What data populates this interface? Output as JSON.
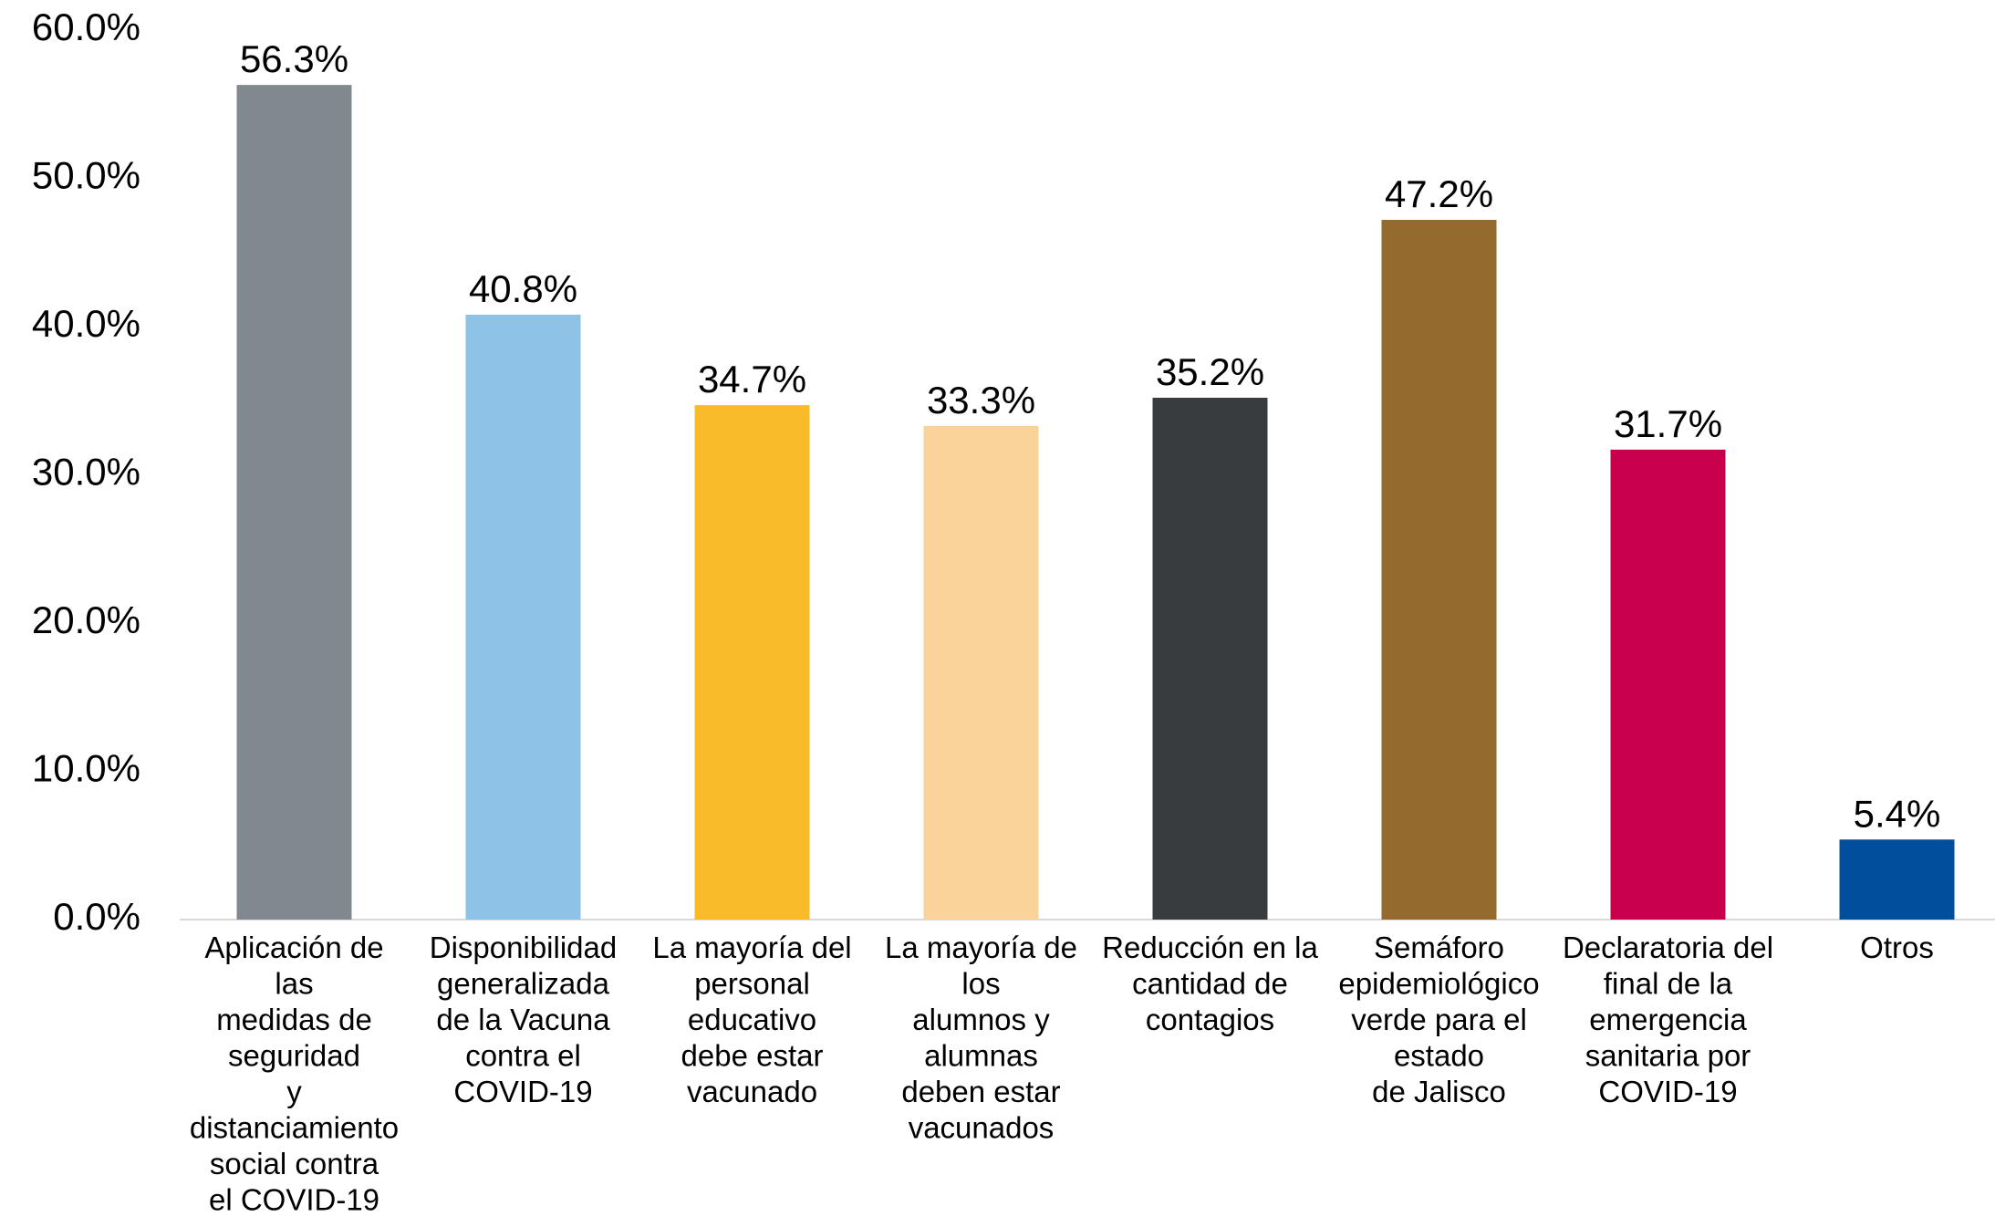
{
  "chart_data": {
    "type": "bar",
    "categories": [
      "Aplicación de\nlas\nmedidas de\nseguridad\ny\ndistanciamiento\nsocial contra\nel COVID-19",
      "Disponibilidad\ngeneralizada\nde la Vacuna\ncontra el\nCOVID-19",
      "La mayoría del\npersonal\neducativo\ndebe estar\nvacunado",
      "La mayoría de\nlos\nalumnos y\nalumnas\ndeben estar\nvacunados",
      "Reducción en la\ncantidad de\ncontagios",
      "Semáforo\nepidemiológico\nverde para el\nestado\nde Jalisco",
      "Declaratoria del\nfinal de la\nemergencia\nsanitaria por\nCOVID-19",
      "Otros"
    ],
    "values": [
      56.3,
      40.8,
      34.7,
      33.3,
      35.2,
      47.2,
      31.7,
      5.4
    ],
    "value_labels": [
      "56.3%",
      "40.8%",
      "34.7%",
      "33.3%",
      "35.2%",
      "47.2%",
      "31.7%",
      "5.4%"
    ],
    "colors": [
      "#7f898e",
      "#8ec2e6",
      "#f9bb2a",
      "#f9d39a",
      "#393c3f",
      "#956a2e",
      "#c8004b",
      "#014f9c"
    ],
    "ylim": [
      0,
      60
    ],
    "yticks": [
      {
        "value": 0,
        "label": "0.0%"
      },
      {
        "value": 10,
        "label": "10.0%"
      },
      {
        "value": 20,
        "label": "20.0%"
      },
      {
        "value": 30,
        "label": "30.0%"
      },
      {
        "value": 40,
        "label": "40.0%"
      },
      {
        "value": 50,
        "label": "50.0%"
      },
      {
        "value": 60,
        "label": "60.0%"
      }
    ],
    "grid": false
  }
}
